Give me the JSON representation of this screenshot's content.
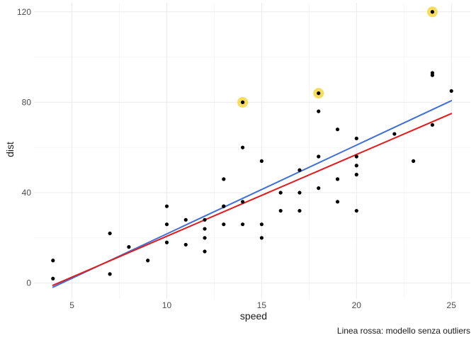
{
  "chart_data": {
    "type": "scatter",
    "title": "",
    "xlabel": "speed",
    "ylabel": "dist",
    "caption": "Linea rossa: modello senza outliers",
    "xlim": [
      3,
      26
    ],
    "ylim": [
      -7,
      124
    ],
    "x_ticks": [
      5,
      10,
      15,
      20,
      25
    ],
    "y_ticks": [
      0,
      40,
      80,
      120
    ],
    "grid": true,
    "points": [
      [
        4,
        2
      ],
      [
        4,
        10
      ],
      [
        7,
        4
      ],
      [
        7,
        22
      ],
      [
        8,
        16
      ],
      [
        9,
        10
      ],
      [
        10,
        18
      ],
      [
        10,
        26
      ],
      [
        10,
        34
      ],
      [
        11,
        17
      ],
      [
        11,
        28
      ],
      [
        12,
        14
      ],
      [
        12,
        20
      ],
      [
        12,
        24
      ],
      [
        12,
        28
      ],
      [
        13,
        26
      ],
      [
        13,
        34
      ],
      [
        13,
        34
      ],
      [
        13,
        46
      ],
      [
        14,
        26
      ],
      [
        14,
        36
      ],
      [
        14,
        60
      ],
      [
        14,
        80
      ],
      [
        15,
        20
      ],
      [
        15,
        26
      ],
      [
        15,
        54
      ],
      [
        16,
        32
      ],
      [
        16,
        40
      ],
      [
        17,
        32
      ],
      [
        17,
        40
      ],
      [
        17,
        50
      ],
      [
        18,
        42
      ],
      [
        18,
        56
      ],
      [
        18,
        76
      ],
      [
        18,
        84
      ],
      [
        19,
        36
      ],
      [
        19,
        46
      ],
      [
        19,
        68
      ],
      [
        20,
        32
      ],
      [
        20,
        48
      ],
      [
        20,
        52
      ],
      [
        20,
        56
      ],
      [
        20,
        64
      ],
      [
        22,
        66
      ],
      [
        23,
        54
      ],
      [
        24,
        70
      ],
      [
        24,
        92
      ],
      [
        24,
        93
      ],
      [
        24,
        120
      ],
      [
        25,
        85
      ]
    ],
    "highlighted_points": [
      [
        14,
        80
      ],
      [
        18,
        84
      ],
      [
        24,
        120
      ]
    ],
    "highlight_color": "#f5d742",
    "point_color": "#000000",
    "lines": [
      {
        "color": "#3f6fd8",
        "x": [
          4,
          25
        ],
        "y": [
          -1.8,
          80.7
        ]
      },
      {
        "color": "#e31a1c",
        "x": [
          4,
          25
        ],
        "y": [
          -1.0,
          75.0
        ]
      }
    ]
  }
}
